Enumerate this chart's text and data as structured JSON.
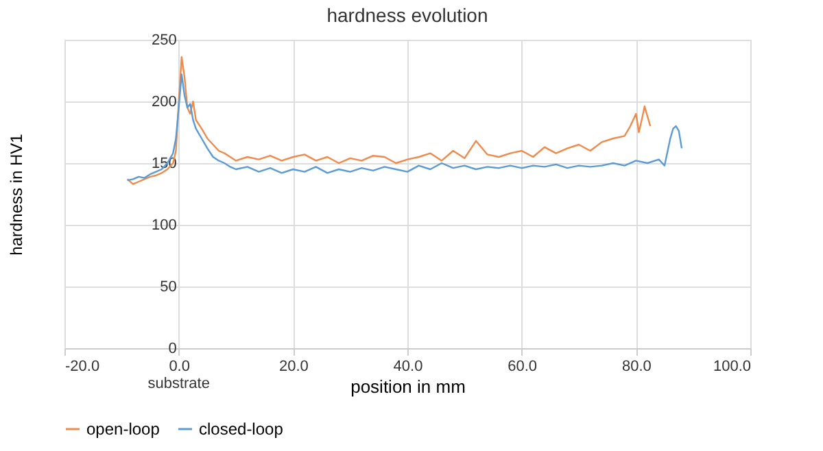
{
  "chart_data": {
    "type": "line",
    "title": "hardness evolution",
    "xlabel": "position  in mm",
    "ylabel": "hardness in HV1",
    "xlim": [
      -20,
      100
    ],
    "xticks": [
      {
        "value": -20,
        "label": "-20.0"
      },
      {
        "value": 0,
        "label": "0.0"
      },
      {
        "value": 20,
        "label": "20.0"
      },
      {
        "value": 40,
        "label": "40.0"
      },
      {
        "value": 60,
        "label": "60.0"
      },
      {
        "value": 80,
        "label": "80.0"
      },
      {
        "value": 100,
        "label": "100.0"
      }
    ],
    "ylim": [
      0,
      250
    ],
    "yticks": [
      0,
      50,
      100,
      150,
      200,
      250
    ],
    "grid": true,
    "legend": "bottom",
    "line_style": "solid",
    "annotations": [
      "substrate"
    ],
    "series": [
      {
        "name": "open-loop",
        "color": "#f08a4b",
        "marker": "none",
        "x": [
          -9,
          -8,
          -7,
          -6,
          -5,
          -4,
          -3,
          -2,
          -1,
          -0.5,
          0,
          0.5,
          1,
          1.5,
          2,
          2.5,
          3,
          4,
          5,
          6,
          7,
          8,
          9,
          10,
          12,
          14,
          16,
          18,
          20,
          22,
          24,
          26,
          28,
          30,
          32,
          34,
          36,
          38,
          40,
          42,
          44,
          46,
          48,
          50,
          52,
          54,
          56,
          58,
          60,
          62,
          64,
          66,
          68,
          70,
          72,
          74,
          76,
          78,
          79,
          80,
          80.5,
          81,
          81.5,
          82,
          82.5
        ],
        "values": [
          137,
          133,
          135,
          137,
          139,
          140,
          142,
          145,
          150,
          160,
          200,
          236,
          220,
          195,
          190,
          200,
          185,
          178,
          170,
          165,
          160,
          158,
          155,
          152,
          155,
          153,
          156,
          152,
          155,
          157,
          152,
          155,
          150,
          154,
          152,
          156,
          155,
          150,
          153,
          155,
          158,
          152,
          160,
          154,
          168,
          157,
          155,
          158,
          160,
          155,
          163,
          158,
          162,
          165,
          160,
          167,
          170,
          172,
          180,
          190,
          175,
          185,
          196,
          188,
          180
        ]
      },
      {
        "name": "closed-loop",
        "color": "#5b9bd5",
        "x": [
          -9,
          -8,
          -7,
          -6,
          -5,
          -4,
          -3,
          -2,
          -1,
          -0.5,
          0,
          0.5,
          1,
          1.5,
          2,
          2.5,
          3,
          4,
          5,
          6,
          7,
          8,
          9,
          10,
          12,
          14,
          16,
          18,
          20,
          22,
          24,
          26,
          28,
          30,
          32,
          34,
          36,
          38,
          40,
          42,
          44,
          46,
          48,
          50,
          52,
          54,
          56,
          58,
          60,
          62,
          64,
          66,
          68,
          70,
          72,
          74,
          76,
          78,
          80,
          82,
          84,
          85,
          86,
          86.5,
          87,
          87.5,
          88
        ],
        "values": [
          136,
          137,
          139,
          138,
          141,
          143,
          145,
          150,
          158,
          170,
          195,
          222,
          205,
          195,
          198,
          185,
          178,
          170,
          162,
          155,
          152,
          150,
          147,
          145,
          147,
          143,
          146,
          142,
          145,
          143,
          147,
          142,
          145,
          143,
          146,
          144,
          147,
          145,
          143,
          148,
          145,
          150,
          146,
          148,
          145,
          147,
          146,
          148,
          146,
          148,
          147,
          149,
          146,
          148,
          147,
          148,
          150,
          148,
          152,
          150,
          153,
          148,
          170,
          178,
          180,
          176,
          162
        ]
      }
    ]
  }
}
